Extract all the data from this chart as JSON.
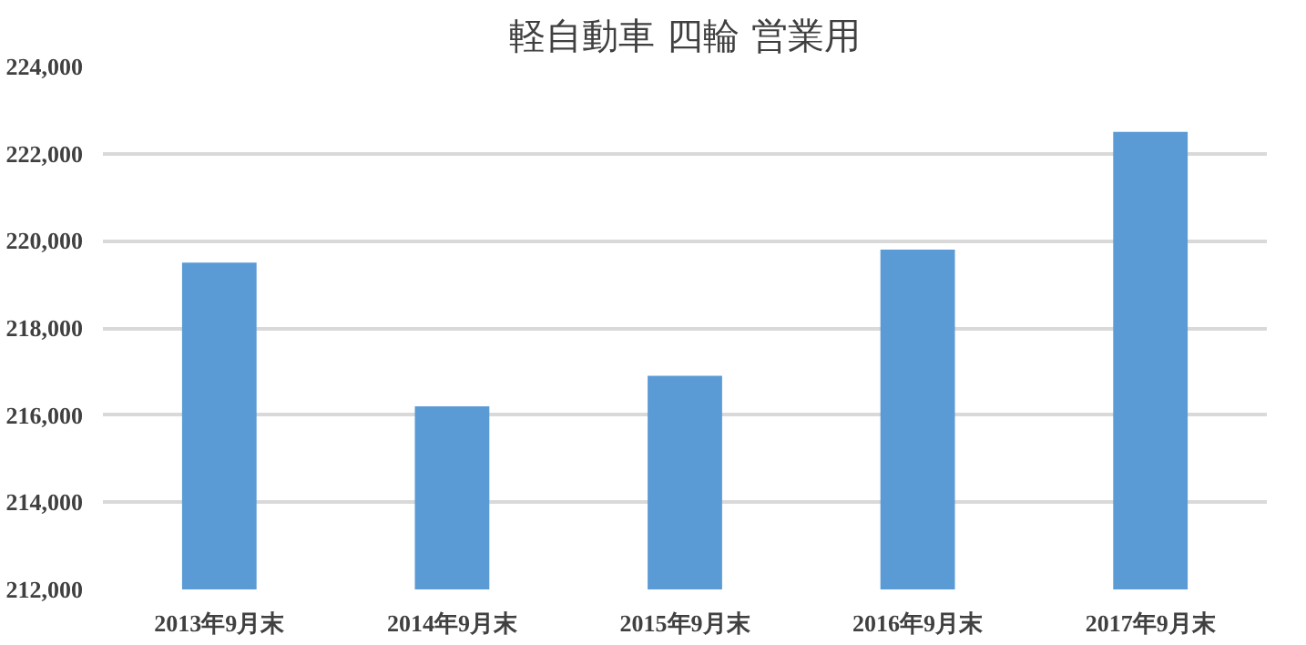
{
  "chart_data": {
    "type": "bar",
    "title": "軽自動車 四輪 営業用",
    "categories": [
      "2013年9月末",
      "2014年9月末",
      "2015年9月末",
      "2016年9月末",
      "2017年9月末"
    ],
    "values": [
      219500,
      216200,
      216900,
      219800,
      222500
    ],
    "color": "#5b9bd5",
    "ylim": [
      212000,
      224000
    ],
    "yticks": [
      {
        "value": 212000,
        "label": "212,000"
      },
      {
        "value": 214000,
        "label": "214,000"
      },
      {
        "value": 216000,
        "label": "216,000"
      },
      {
        "value": 218000,
        "label": "218,000"
      },
      {
        "value": 220000,
        "label": "220,000"
      },
      {
        "value": 222000,
        "label": "222,000"
      },
      {
        "value": 224000,
        "label": "224,000"
      }
    ],
    "grid": "y"
  }
}
